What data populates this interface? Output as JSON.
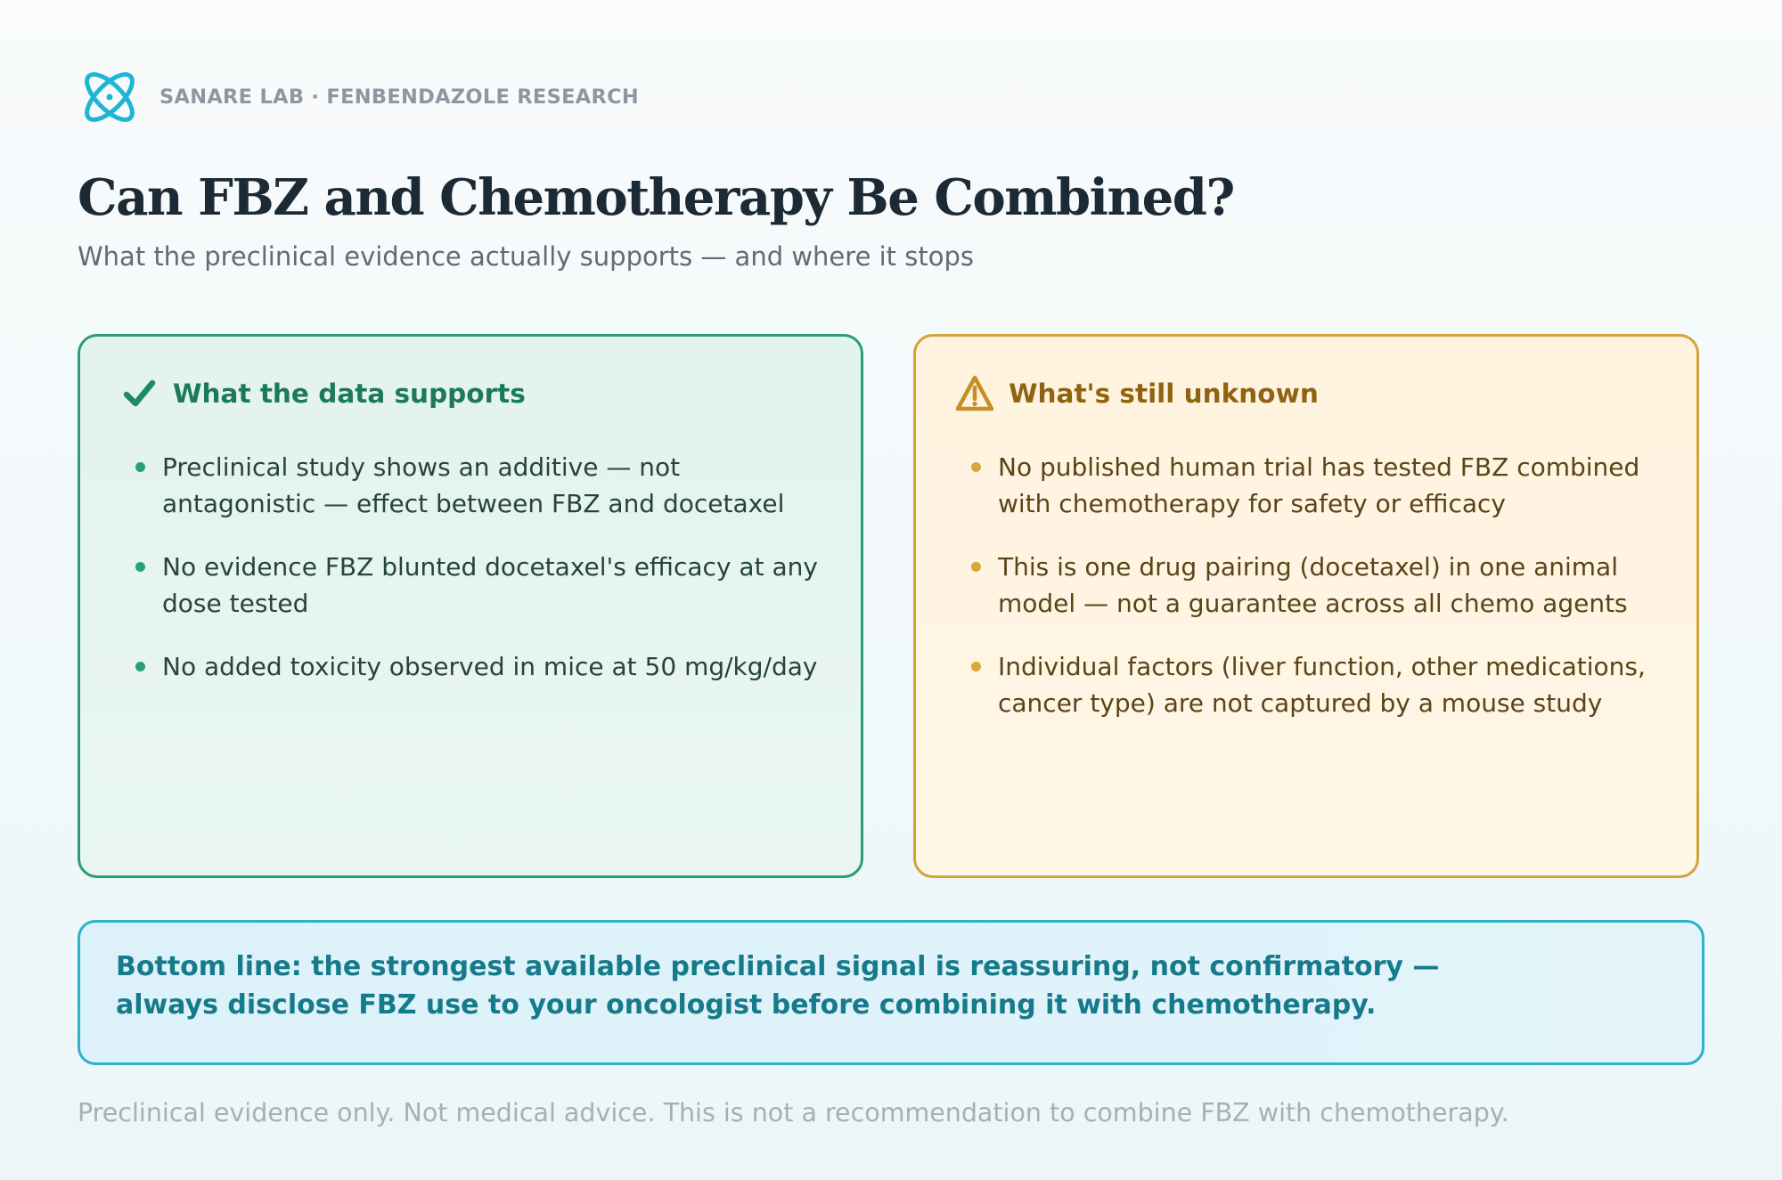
{
  "brand": {
    "name": "SANARE LAB · FENBENDAZOLE RESEARCH",
    "logo_icon": "atom-icon",
    "accent_color": "#1fb5d3"
  },
  "header": {
    "title": "Can FBZ and Chemotherapy Be Combined?",
    "subtitle": "What the preclinical evidence actually supports — and where it stops"
  },
  "supports": {
    "icon": "checkmark-icon",
    "title": "What the data supports",
    "color": "#1d7a58",
    "items": [
      "Preclinical study shows an additive — not antagonistic — effect between FBZ and docetaxel",
      "No evidence FBZ blunted docetaxel's efficacy at any dose tested",
      "No added toxicity observed in mice at 50 mg/kg/day"
    ]
  },
  "unknown": {
    "icon": "warning-triangle-icon",
    "title": "What's still unknown",
    "color": "#8e6410",
    "items": [
      "No published human trial has tested FBZ combined with chemotherapy for safety or efficacy",
      "This is one drug pairing (docetaxel) in one animal model — not a guarantee across all chemo agents",
      "Individual factors (liver function, other medications, cancer type) are not captured by a mouse study"
    ]
  },
  "bottom_line": {
    "text": "Bottom line: the strongest available preclinical signal is reassuring, not confirmatory — always disclose FBZ use to your oncologist before combining it with chemotherapy.",
    "color": "#157a8a"
  },
  "footer": {
    "disclaimer": "Preclinical evidence only. Not medical advice. This is not a recommendation to combine FBZ with chemotherapy."
  }
}
